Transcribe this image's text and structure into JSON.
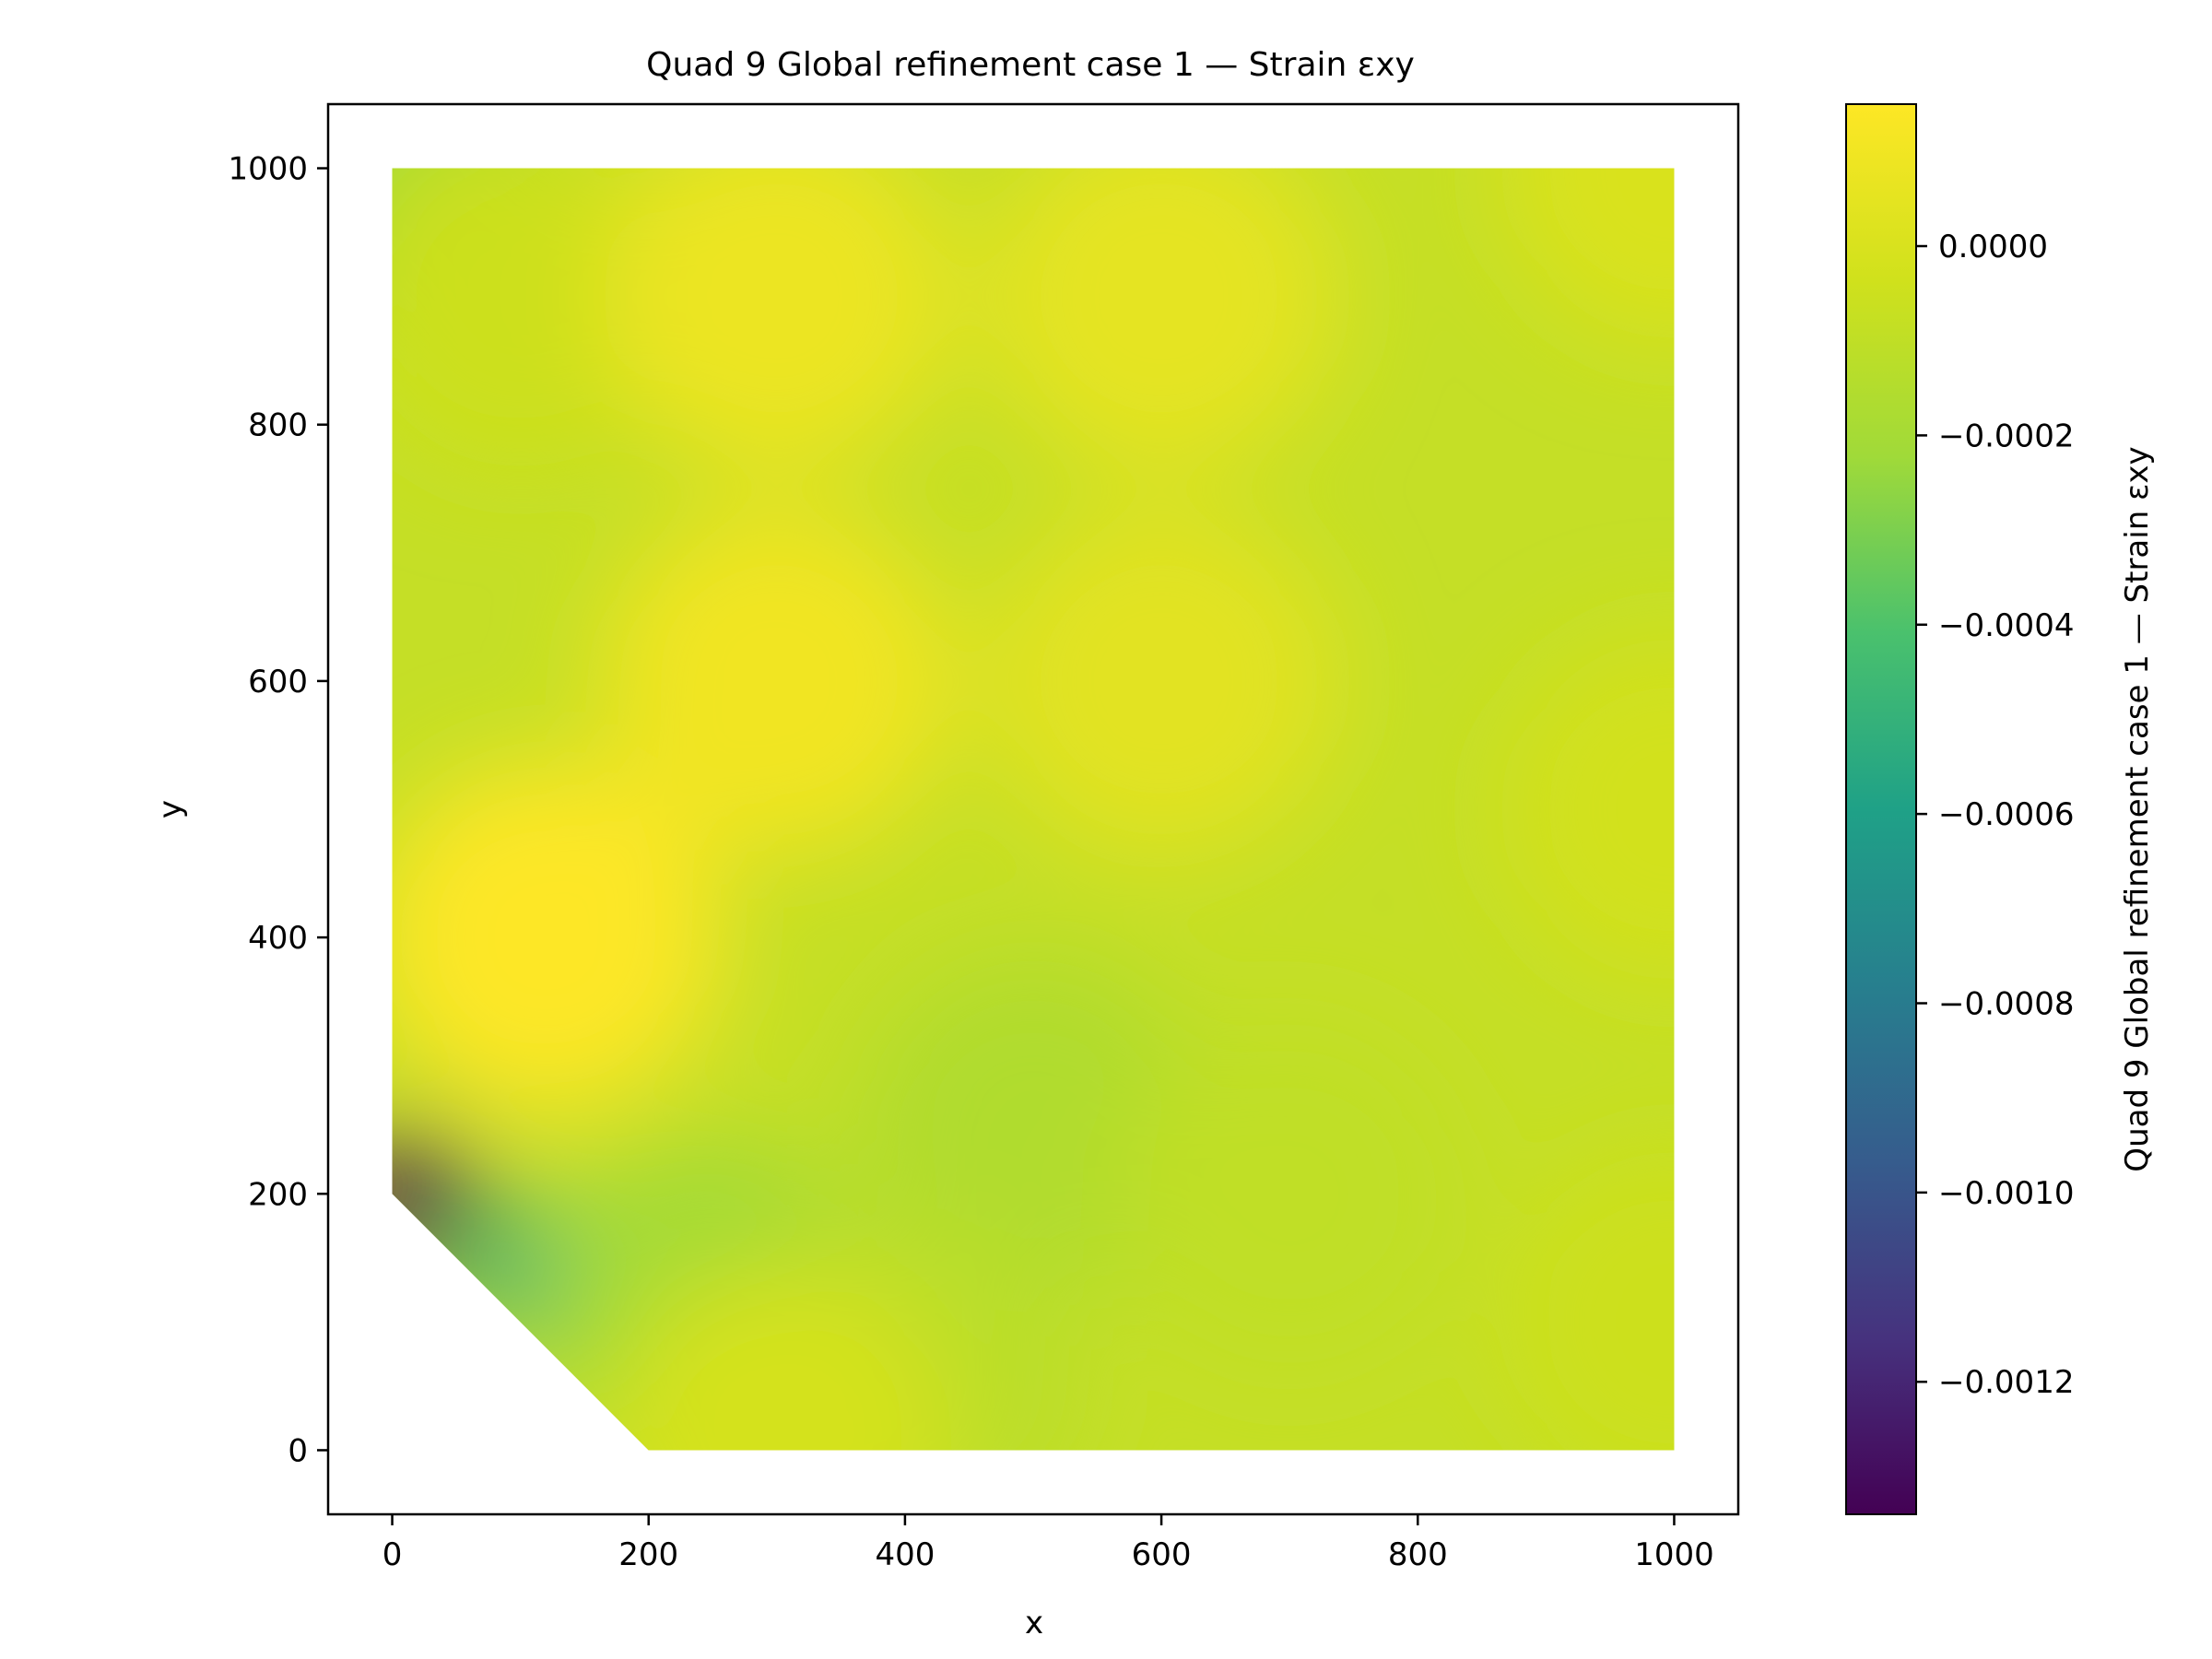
{
  "chart_data": {
    "type": "heatmap",
    "title": "Quad 9 Global refinement case 1 — Strain εxy",
    "xlabel": "x",
    "ylabel": "y",
    "xlim": [
      -50,
      1050
    ],
    "ylim": [
      -50,
      1050
    ],
    "xticks": [
      0,
      200,
      400,
      600,
      800,
      1000
    ],
    "yticks": [
      0,
      200,
      400,
      600,
      800,
      1000
    ],
    "xtick_labels": [
      "0",
      "200",
      "400",
      "600",
      "800",
      "1000"
    ],
    "ytick_labels": [
      "0",
      "200",
      "400",
      "600",
      "800",
      "1000"
    ],
    "grid": false,
    "colormap": "viridis",
    "domain_polygon": [
      [
        200,
        0
      ],
      [
        1000,
        0
      ],
      [
        1000,
        1000
      ],
      [
        0,
        1000
      ],
      [
        0,
        200
      ]
    ],
    "colorbar": {
      "label": "Quad 9 Global refinement case 1 — Strain εxy",
      "min": -0.00134,
      "max": 0.00015,
      "ticks": [
        0.0,
        -0.0002,
        -0.0004,
        -0.0006,
        -0.0008,
        -0.001,
        -0.0012
      ],
      "tick_labels": [
        "0.0000",
        "−0.0002",
        "−0.0004",
        "−0.0006",
        "−0.0008",
        "−0.0010",
        "−0.0012"
      ]
    },
    "field_samples": [
      {
        "x": 0,
        "y": 1000,
        "value": -0.00022
      },
      {
        "x": 100,
        "y": 900,
        "value": -5e-05
      },
      {
        "x": 300,
        "y": 900,
        "value": 8e-05
      },
      {
        "x": 600,
        "y": 900,
        "value": 5e-05
      },
      {
        "x": 1000,
        "y": 1000,
        "value": 0.0
      },
      {
        "x": 120,
        "y": 400,
        "value": 0.00015
      },
      {
        "x": 300,
        "y": 600,
        "value": 0.0001
      },
      {
        "x": 600,
        "y": 600,
        "value": 4e-05
      },
      {
        "x": 1000,
        "y": 500,
        "value": -3e-05
      },
      {
        "x": 500,
        "y": 250,
        "value": -0.00016
      },
      {
        "x": 700,
        "y": 200,
        "value": -0.0001
      },
      {
        "x": 1000,
        "y": 100,
        "value": -5e-05
      },
      {
        "x": 10,
        "y": 195,
        "value": -0.00134
      },
      {
        "x": 100,
        "y": 140,
        "value": -0.0005
      },
      {
        "x": 250,
        "y": 100,
        "value": -0.00022
      },
      {
        "x": 400,
        "y": 50,
        "value": -0.00012
      },
      {
        "x": 300,
        "y": 10,
        "value": -2e-05
      }
    ]
  }
}
